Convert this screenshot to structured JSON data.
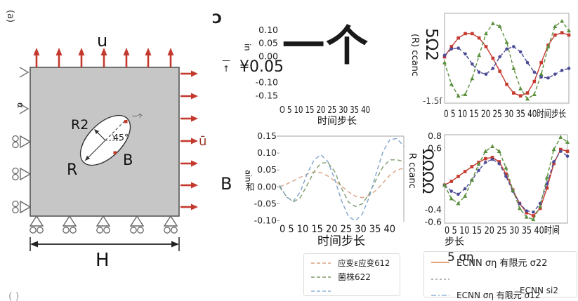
{
  "figure": {
    "corner_label_rotated": "(a)",
    "bottom_corner_label": "( )"
  },
  "diagram": {
    "top_load_label": "u",
    "right_load_label": "ū",
    "alpha_label": "α",
    "width_label": "H",
    "radius_major_label": "R",
    "radius_minor_label": "R2",
    "angle_label": "45°",
    "point_b_label": "B",
    "point_a_garbled_label": "一个",
    "colors": {
      "plate": "#c6c6c6",
      "plate_border": "#4d4d4d",
      "load_arrow": "#c4392e",
      "right_load_text": "#9c3a2a",
      "support": "#666666",
      "hole_dot": "#c0392b"
    }
  },
  "garbled_fragments": {
    "rotated_u_shape": "Ɔ",
    "ylabel_in": "in",
    "overbar": "—",
    "up_arrow": "↑",
    "yen_tick": "¥0.05",
    "big_cjk_overlay": "一个",
    "top_right_ylabel_small": "(R) ccanc",
    "top_right_ylabel_big": "5Ω2",
    "top_right_ytick": "-1.5ſ",
    "side_b": "B",
    "ylabel_ain": "ain",
    "ylabel_he": "和",
    "bottom_right_ylabel_small": "R ccanc",
    "bottom_right_ylabel_big": "ΩΩΩΩ",
    "legend_overlap": "5 ση"
  },
  "chart_data": [
    {
      "id": "top_middle",
      "type": "line",
      "title": "",
      "xlabel": "时间步长",
      "xtick_text": "O 5 10 15 20 25 30 35 40",
      "yticks": [
        {
          "v": 0.1,
          "label": "0.10"
        },
        {
          "v": 0.05,
          "label": "0.05"
        },
        {
          "v": 0.0,
          "label": "0.00"
        },
        {
          "v": -0.1,
          "label": "-0.10"
        },
        {
          "v": -0.15,
          "label": "-0.15"
        }
      ],
      "ylim": [
        0.135,
        -0.165
      ],
      "xlim": [
        0,
        45
      ],
      "note": "plot area obscured by oversized garbled glyphs; tick -0.05 rendered as ¥0.05",
      "x": [],
      "series": []
    },
    {
      "id": "top_right",
      "type": "line",
      "title": "",
      "xlabel": "",
      "xtick_text": "0 5 10 15 20 25 30 35 40时间步长",
      "yticks": [
        {
          "v": -1.5,
          "label": "-1.5ſ"
        }
      ],
      "ylim": [
        1.55,
        -1.55
      ],
      "xlim": [
        0,
        45
      ],
      "x": [
        0,
        2.5,
        5,
        7.5,
        10,
        12.5,
        15,
        17.5,
        20,
        22.5,
        25,
        27.5,
        30,
        32.5,
        35,
        37.5,
        40,
        42.5,
        45
      ],
      "series": [
        {
          "name": "red-squares-solid",
          "color": "#c53a2f",
          "marker": "square",
          "dash": "",
          "values": [
            0.05,
            0.4,
            0.7,
            0.85,
            0.85,
            0.7,
            0.4,
            0,
            -0.45,
            -0.9,
            -1.2,
            -1.3,
            -1.2,
            -0.8,
            -0.15,
            0.45,
            0.8,
            0.88,
            0.8
          ]
        },
        {
          "name": "green-triangles-dashed",
          "color": "#5a8f3d",
          "marker": "triangle",
          "dash": "5,3",
          "values": [
            -0.15,
            -0.9,
            -1.3,
            -1.25,
            -0.7,
            0.1,
            0.85,
            1.2,
            1.1,
            0.55,
            -0.35,
            -1.05,
            -1.4,
            -1.25,
            -0.55,
            0.4,
            1.1,
            1.28,
            0.95
          ]
        },
        {
          "name": "blue-circles-dashed",
          "color": "#4c4c96",
          "marker": "circle",
          "dash": "5,3",
          "values": [
            0.1,
            0.32,
            0.35,
            0.15,
            -0.2,
            -0.48,
            -0.55,
            -0.35,
            0.05,
            0.32,
            0.4,
            0.22,
            -0.15,
            -0.48,
            -0.65,
            -0.68,
            -0.55,
            -0.42,
            -0.35
          ]
        }
      ]
    },
    {
      "id": "bottom_middle",
      "type": "line",
      "title": "",
      "xlabel": "时间步长",
      "xtick_text": "0 5 10 15 20 25 30 35 40",
      "yticks": [
        {
          "v": 0.15,
          "label": "0.15"
        },
        {
          "v": 0.1,
          "label": "0.10"
        },
        {
          "v": 0.05,
          "label": "0.05"
        },
        {
          "v": 0.0,
          "label": "0.00"
        },
        {
          "v": -0.05,
          "label": "-0.05"
        },
        {
          "v": -0.1,
          "label": "-0.10"
        }
      ],
      "ylim": [
        0.15,
        -0.103
      ],
      "xlim": [
        0,
        45
      ],
      "x": [
        0,
        2.5,
        5,
        7.5,
        10,
        12.5,
        15,
        17.5,
        20,
        22.5,
        25,
        27.5,
        30,
        32.5,
        35,
        37.5,
        40,
        42.5,
        45
      ],
      "series": [
        {
          "name": "orange-dashed",
          "color": "#d9a384",
          "marker": "",
          "dash": "6,4",
          "values": [
            0,
            0.008,
            0.018,
            0.028,
            0.038,
            0.044,
            0.042,
            0.032,
            0.018,
            0.002,
            -0.015,
            -0.028,
            -0.032,
            -0.025,
            -0.01,
            0.012,
            0.035,
            0.05,
            0.055
          ]
        },
        {
          "name": "green-dashed",
          "color": "#7e9c6d",
          "marker": "",
          "dash": "6,4",
          "values": [
            0,
            -0.028,
            -0.045,
            -0.032,
            0.005,
            0.045,
            0.07,
            0.072,
            0.045,
            -0.005,
            -0.045,
            -0.058,
            -0.05,
            -0.02,
            0.022,
            0.06,
            0.08,
            0.08,
            0.075
          ]
        },
        {
          "name": "blue-dashed",
          "color": "#7fa3c9",
          "marker": "",
          "dash": "6,4",
          "values": [
            0.005,
            -0.03,
            -0.042,
            -0.015,
            0.038,
            0.08,
            0.095,
            0.075,
            0.022,
            -0.042,
            -0.088,
            -0.1,
            -0.08,
            -0.03,
            0.04,
            0.105,
            0.14,
            0.143,
            0.12
          ]
        }
      ]
    },
    {
      "id": "bottom_right",
      "type": "line",
      "title": "",
      "xlabel": "步长",
      "xtick_text": "0 5 10 15 20 25 30 35 40时间",
      "yticks": [
        {
          "v": 0.8,
          "label": "0.8"
        },
        {
          "v": 0.6,
          "label": "0.6"
        },
        {
          "v": -0.4,
          "label": "-0.4"
        },
        {
          "v": -0.6,
          "label": "-0.6"
        }
      ],
      "ylim": [
        0.82,
        -0.62
      ],
      "xlim": [
        0,
        45
      ],
      "x": [
        0,
        2.5,
        5,
        7.5,
        10,
        12.5,
        15,
        17.5,
        20,
        22.5,
        25,
        27.5,
        30,
        32.5,
        35,
        37.5,
        40,
        42.5,
        45
      ],
      "series": [
        {
          "name": "red-squares-solid",
          "color": "#c53a2f",
          "marker": "square",
          "dash": "",
          "values": [
            0,
            0.06,
            0.14,
            0.22,
            0.3,
            0.37,
            0.43,
            0.45,
            0.38,
            0.18,
            -0.08,
            -0.3,
            -0.45,
            -0.5,
            -0.38,
            -0.05,
            0.35,
            0.58,
            0.55
          ]
        },
        {
          "name": "blue-circles-dashed",
          "color": "#4c4c96",
          "marker": "circle",
          "dash": "5,3",
          "values": [
            0,
            -0.1,
            -0.15,
            -0.06,
            0.08,
            0.24,
            0.37,
            0.42,
            0.35,
            0.14,
            -0.1,
            -0.3,
            -0.42,
            -0.44,
            -0.3,
            0.02,
            0.38,
            0.55,
            0.47
          ]
        },
        {
          "name": "green-triangles-dashed",
          "color": "#5a8f3d",
          "marker": "triangle",
          "dash": "5,3",
          "values": [
            0,
            -0.22,
            -0.3,
            -0.18,
            0.08,
            0.34,
            0.55,
            0.63,
            0.55,
            0.28,
            -0.08,
            -0.38,
            -0.52,
            -0.56,
            -0.35,
            0.12,
            0.58,
            0.78,
            0.7
          ]
        }
      ]
    }
  ],
  "legend_left": {
    "items": [
      {
        "label": "应变ε应变612",
        "color": "#d9a384",
        "dash": "5,3"
      },
      {
        "label": "菌株622",
        "color": "#7e9c6d",
        "dash": "5,3"
      },
      {
        "label": "",
        "color": "#8fb3d9",
        "dash": "5,3"
      }
    ]
  },
  "legend_right": {
    "items": [
      {
        "label": "ECNN ση 有限元 σ22",
        "color": "#e0956a",
        "dash": ""
      },
      {
        "label": "",
        "color": "#9aa0a8",
        "dash": "3,3"
      },
      {
        "label": "ECNN ση 有限元 σ12",
        "color": "#8fb3d9",
        "dash": "7,3,2,3"
      }
    ],
    "extra_label": "ECNN si2"
  }
}
